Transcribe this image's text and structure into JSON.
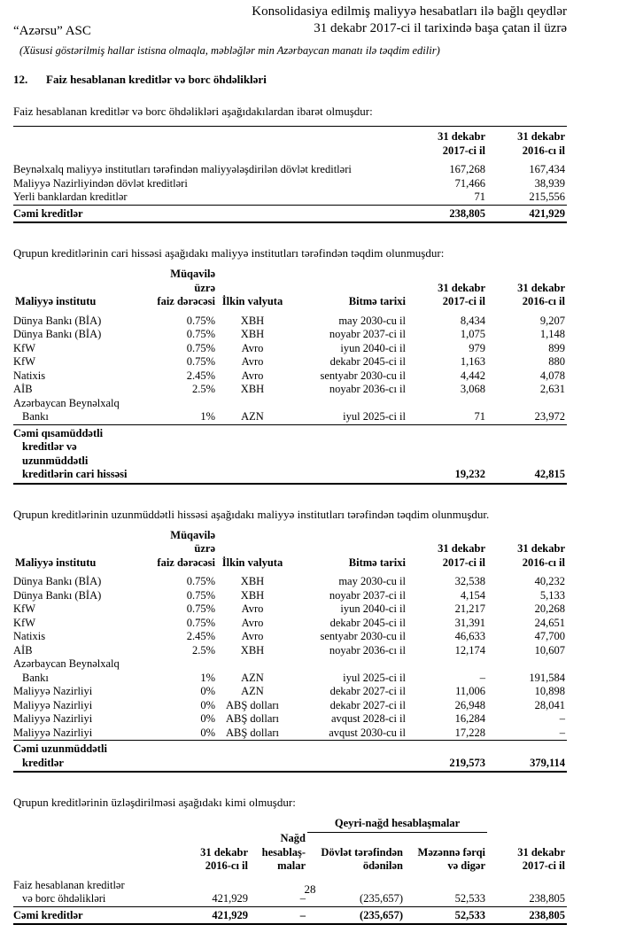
{
  "header": {
    "company": "“Azərsu” ASC",
    "title_lines": [
      "Konsolidasiya edilmiş maliyyə hesabatları ilə bağlı qeydlər",
      "31 dekabr 2017-ci il tarixində başa çatan il üzrə"
    ]
  },
  "note": "(Xüsusi göstərilmiş hallar istisna olmaqla, məbləğlər min Azərbaycan manatı ilə təqdim edilir)",
  "section": {
    "number": "12.",
    "title": "Faiz hesablanan kreditlər və borc öhdəlikləri"
  },
  "tables": [
    {
      "intro": "Faiz hesablanan kreditlər və borc öhdəlikləri aşağıdakılardan ibarət olmuşdur:",
      "columns": [
        null,
        "31 dekabr\n2017-ci il",
        "31 dekabr\n2016-cı il"
      ],
      "rows": [
        [
          "Beynəlxalq maliyyə institutları tərəfindən maliyyələşdirilən dövlət kreditləri",
          "167,268",
          "167,434"
        ],
        [
          "Maliyyə Nazirliyindən dövlət kreditləri",
          "71,466",
          "38,939"
        ],
        [
          "Yerli banklardan kreditlər",
          "71",
          "215,556"
        ]
      ],
      "total": [
        "Cəmi kreditlər",
        "238,805",
        "421,929"
      ]
    },
    {
      "intro": "Qrupun kreditlərinin cari hissəsi aşağıdakı maliyyə institutları tərəfindən təqdim olunmuşdur:",
      "columns": [
        "Maliyyə institutu",
        "Müqavilə üzrə\nfaiz dərəcəsi",
        "İlkin valyuta",
        "Bitmə tarixi",
        "31 dekabr\n2017-ci il",
        "31 dekabr\n2016-cı il"
      ],
      "rows": [
        [
          "Dünya Bankı (BİA)",
          "0.75%",
          "XBH",
          "may 2030-cu il",
          "8,434",
          "9,207"
        ],
        [
          "Dünya Bankı (BİA)",
          "0.75%",
          "XBH",
          "noyabr 2037-ci il",
          "1,075",
          "1,148"
        ],
        [
          "KfW",
          "0.75%",
          "Avro",
          "iyun 2040-ci il",
          "979",
          "899"
        ],
        [
          "KfW",
          "0.75%",
          "Avro",
          "dekabr 2045-ci il",
          "1,163",
          "880"
        ],
        [
          "Natixis",
          "2.45%",
          "Avro",
          "sentyabr 2030-cu il",
          "4,442",
          "4,078"
        ],
        [
          "AİB",
          "2.5%",
          "XBH",
          "noyabr 2036-cı il",
          "3,068",
          "2,631"
        ],
        [
          "Azərbaycan Beynəlxalq\nBankı",
          "1%",
          "AZN",
          "iyul 2025-ci il",
          "71",
          "23,972"
        ]
      ],
      "total": [
        "Cəmi qısamüddətli\nkreditlər və uzunmüddətli\nkreditlərin cari hissəsi",
        null,
        null,
        null,
        "19,232",
        "42,815"
      ]
    },
    {
      "intro": "Qrupun kreditlərinin uzunmüddətli hissəsi aşağıdakı maliyyə institutları tərəfindən təqdim olunmuşdur.",
      "columns": [
        "Maliyyə institutu",
        "Müqavilə üzrə\nfaiz dərəcəsi",
        "İlkin valyuta",
        "Bitmə tarixi",
        "31 dekabr\n2017-ci il",
        "31 dekabr\n2016-cı il"
      ],
      "rows": [
        [
          "Dünya Bankı (BİA)",
          "0.75%",
          "XBH",
          "may 2030-cu il",
          "32,538",
          "40,232"
        ],
        [
          "Dünya Bankı (BİA)",
          "0.75%",
          "XBH",
          "noyabr 2037-ci il",
          "4,154",
          "5,133"
        ],
        [
          "KfW",
          "0.75%",
          "Avro",
          "iyun 2040-ci il",
          "21,217",
          "20,268"
        ],
        [
          "KfW",
          "0.75%",
          "Avro",
          "dekabr 2045-ci il",
          "31,391",
          "24,651"
        ],
        [
          "Natixis",
          "2.45%",
          "Avro",
          "sentyabr 2030-cu il",
          "46,633",
          "47,700"
        ],
        [
          "AİB",
          "2.5%",
          "XBH",
          "noyabr 2036-cı il",
          "12,174",
          "10,607"
        ],
        [
          "Azərbaycan Beynəlxalq\nBankı",
          "1%",
          "AZN",
          "iyul 2025-ci il",
          "–",
          "191,584"
        ],
        [
          "Maliyyə Nazirliyi",
          "0%",
          "AZN",
          "dekabr 2027-ci il",
          "11,006",
          "10,898"
        ],
        [
          "Maliyyə Nazirliyi",
          "0%",
          "ABŞ dolları",
          "dekabr 2027-ci il",
          "26,948",
          "28,041"
        ],
        [
          "Maliyyə Nazirliyi",
          "0%",
          "ABŞ dolları",
          "avqust 2028-ci il",
          "16,284",
          "–"
        ],
        [
          "Maliyyə Nazirliyi",
          "0%",
          "ABŞ dolları",
          "avqust 2030-cu il",
          "17,228",
          "–"
        ]
      ],
      "total": [
        "Cəmi uzunmüddətli\nkreditlər",
        null,
        null,
        null,
        "219,573",
        "379,114"
      ]
    },
    {
      "intro": "Qrupun kreditlərinin üzləşdirilməsi aşağıdakı kimi olmuşdur:",
      "group_header": "Qeyri-nağd hesablaşmalar",
      "columns": [
        null,
        "31 dekabr\n2016-cı il",
        "Nağd\nhesablaş-\nmalar",
        "Dövlət tərəfindən\nödənilən",
        "Məzənnə fərqi\nvə digər",
        "31 dekabr\n2017-ci il"
      ],
      "rows": [
        [
          "Faiz hesablanan kreditlər\nvə borc öhdəlikləri",
          "421,929",
          "–",
          "(235,657)",
          "52,533",
          "238,805"
        ]
      ],
      "total": [
        "Cəmi kreditlər",
        "421,929",
        "–",
        "(235,657)",
        "52,533",
        "238,805"
      ]
    }
  ],
  "page_number": "28"
}
